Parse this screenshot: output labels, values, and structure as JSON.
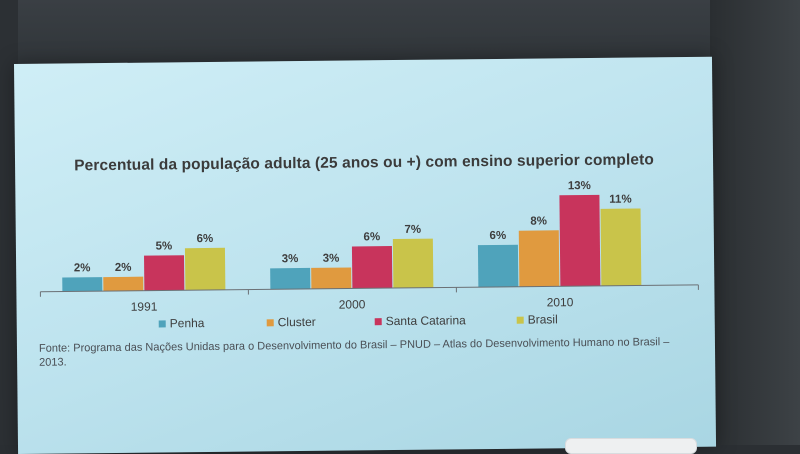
{
  "chart_data": {
    "type": "bar",
    "title": "Percentual da população adulta (25 anos ou +) com ensino superior completo",
    "categories": [
      "1991",
      "2000",
      "2010"
    ],
    "series": [
      {
        "name": "Penha",
        "values": [
          2,
          3,
          6
        ],
        "labels": [
          "2%",
          "3%",
          "6%"
        ],
        "color": "#4fa3bb"
      },
      {
        "name": "Cluster",
        "values": [
          2,
          3,
          8
        ],
        "labels": [
          "2%",
          "3%",
          "8%"
        ],
        "color": "#e09a3f"
      },
      {
        "name": "Santa Catarina",
        "values": [
          5,
          6,
          13
        ],
        "labels": [
          "5%",
          "6%",
          "13%"
        ],
        "color": "#c8345c"
      },
      {
        "name": "Brasil",
        "values": [
          6,
          7,
          11
        ],
        "labels": [
          "6%",
          "7%",
          "11%"
        ],
        "color": "#c9c44a"
      }
    ],
    "ylim": [
      0,
      14
    ],
    "xlabel": "",
    "ylabel": "",
    "legend": "bottom",
    "grid": false
  },
  "source_note": "Fonte: Programa das Nações Unidas para o Desenvolvimento do Brasil – PNUD – Atlas do Desenvolvimento Humano no Brasil – 2013."
}
